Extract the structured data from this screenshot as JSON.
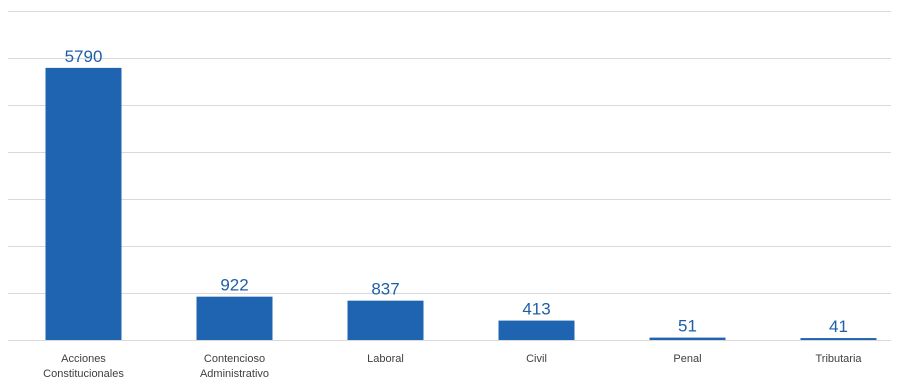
{
  "chart_data": {
    "type": "bar",
    "title": "",
    "xlabel": "",
    "ylabel": "",
    "categories": [
      "Acciones Constitucionales",
      "Contencioso Administrativo",
      "Laboral",
      "Civil",
      "Penal",
      "Tributaria"
    ],
    "category_lines": [
      [
        "Acciones",
        "Constitucionales"
      ],
      [
        "Contencioso",
        "Administrativo"
      ],
      [
        "Laboral"
      ],
      [
        "Civil"
      ],
      [
        "Penal"
      ],
      [
        "Tributaria"
      ]
    ],
    "values": [
      5790,
      922,
      837,
      413,
      51,
      41
    ],
    "data_labels": [
      "5790",
      "922",
      "837",
      "413",
      "51",
      "41"
    ],
    "ylim": [
      0,
      7000
    ],
    "y_gridline_step": 1000,
    "y_tick_labels_shown": false,
    "grid": true,
    "legend": "none",
    "colors": {
      "bar": "#1f64b0",
      "label": "#1f5fa8",
      "grid": "#d9d9d9",
      "category_text": "#404040"
    }
  }
}
